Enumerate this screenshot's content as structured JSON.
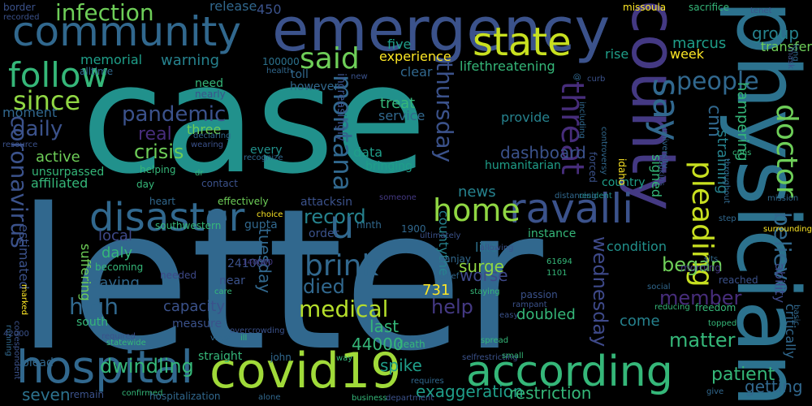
{
  "words": [
    {
      "text": "case",
      "color": "#21918c"
    },
    {
      "text": "letter",
      "color": "#31688e"
    },
    {
      "text": "emergency",
      "color": "#3b528b"
    },
    {
      "text": "physician",
      "color": "#2c728e"
    },
    {
      "text": "community",
      "color": "#31688e"
    },
    {
      "text": "covid19",
      "color": "#a0da39"
    },
    {
      "text": "according",
      "color": "#35b779"
    },
    {
      "text": "county",
      "color": "#443983"
    },
    {
      "text": "hospital",
      "color": "#31688e"
    },
    {
      "text": "ravalli",
      "color": "#3b528b"
    },
    {
      "text": "disaster",
      "color": "#31688e"
    },
    {
      "text": "state",
      "color": "#c8e020"
    },
    {
      "text": "follow",
      "color": "#35b779"
    },
    {
      "text": "infection",
      "color": "#6ece58"
    },
    {
      "text": "people",
      "color": "#31688e"
    },
    {
      "text": "said",
      "color": "#6ece58"
    },
    {
      "text": "doctor",
      "color": "#6ece58"
    },
    {
      "text": "montana",
      "color": "#31688e"
    },
    {
      "text": "say",
      "color": "#31688e"
    },
    {
      "text": "pleading",
      "color": "#c8e020"
    },
    {
      "text": "thursday",
      "color": "#3b528b"
    },
    {
      "text": "home",
      "color": "#90d743"
    },
    {
      "text": "brink",
      "color": "#31688e"
    },
    {
      "text": "since",
      "color": "#90d743"
    },
    {
      "text": "coronavirus",
      "color": "#3b528b"
    },
    {
      "text": "daily",
      "color": "#3b528b"
    },
    {
      "text": "crisis",
      "color": "#6ece58"
    },
    {
      "text": "pandemic",
      "color": "#3b528b"
    },
    {
      "text": "threat",
      "color": "#472d7b"
    },
    {
      "text": "record",
      "color": "#26828e"
    },
    {
      "text": "medical",
      "color": "#b5de2b"
    },
    {
      "text": "matter",
      "color": "#35b779"
    },
    {
      "text": "tuesday",
      "color": "#31688e"
    },
    {
      "text": "high",
      "color": "#31688e"
    },
    {
      "text": "dwindling",
      "color": "#35b779"
    },
    {
      "text": "exaggeration",
      "color": "#1f9e89"
    },
    {
      "text": "patient",
      "color": "#35b779"
    },
    {
      "text": "u",
      "color": "#31688e"
    },
    {
      "text": "wednesday",
      "color": "#3e4989"
    },
    {
      "text": "help",
      "color": "#443983"
    },
    {
      "text": "believe",
      "color": "#31688e"
    },
    {
      "text": "member",
      "color": "#472d7b"
    },
    {
      "text": "began",
      "color": "#6ece58"
    },
    {
      "text": "died",
      "color": "#31688e"
    },
    {
      "text": "capacity",
      "color": "#3b528b"
    },
    {
      "text": "restriction",
      "color": "#35b779"
    },
    {
      "text": "getting",
      "color": "#31688e"
    },
    {
      "text": "worse",
      "color": "#3e4989"
    },
    {
      "text": "surge",
      "color": "#90d743"
    },
    {
      "text": "cnn",
      "color": "#31688e"
    },
    {
      "text": "group",
      "color": "#26828e"
    },
    {
      "text": "warning",
      "color": "#26828e"
    },
    {
      "text": "experience",
      "color": "#fde725"
    },
    {
      "text": "release",
      "color": "#31688e"
    },
    {
      "text": "five",
      "color": "#1f9e89"
    },
    {
      "text": "rise",
      "color": "#1f9e89"
    },
    {
      "text": "marcus",
      "color": "#1f9e89"
    },
    {
      "text": "transfer",
      "color": "#6ece58"
    },
    {
      "text": "week",
      "color": "#fde725"
    },
    {
      "text": "active",
      "color": "#6ece58"
    },
    {
      "text": "affiliated",
      "color": "#35b779"
    },
    {
      "text": "three",
      "color": "#6ece58"
    },
    {
      "text": "real",
      "color": "#472d7b"
    },
    {
      "text": "data",
      "color": "#1f9e89"
    },
    {
      "text": "dashboard",
      "color": "#3b528b"
    },
    {
      "text": "treat",
      "color": "#35b779"
    },
    {
      "text": "news",
      "color": "#26828e"
    },
    {
      "text": "44000",
      "color": "#35b779"
    },
    {
      "text": "seven",
      "color": "#2c728e"
    },
    {
      "text": "spike",
      "color": "#1f9e89"
    },
    {
      "text": "last",
      "color": "#35b779"
    },
    {
      "text": "estimated",
      "color": "#3b528b"
    },
    {
      "text": "local",
      "color": "#3e4989"
    },
    {
      "text": "daly",
      "color": "#35b779"
    },
    {
      "text": "saying",
      "color": "#31688e"
    },
    {
      "text": "suffering",
      "color": "#6ece58"
    },
    {
      "text": "hampering",
      "color": "#35b779"
    },
    {
      "text": "straining",
      "color": "#26828e"
    },
    {
      "text": "signed",
      "color": "#35b779"
    },
    {
      "text": "ability",
      "color": "#3e4989"
    },
    {
      "text": "critically",
      "color": "#31688e"
    },
    {
      "text": "731",
      "color": "#fde725"
    },
    {
      "text": "450",
      "color": "#3b528b"
    },
    {
      "text": "countythe",
      "color": "#26828e"
    },
    {
      "text": "come",
      "color": "#26828e"
    },
    {
      "text": "doubled",
      "color": "#35b779"
    },
    {
      "text": "provide",
      "color": "#26828e"
    },
    {
      "text": "like",
      "color": "#2c728e"
    },
    {
      "text": "condition",
      "color": "#21918c"
    },
    {
      "text": "memorial",
      "color": "#1f9e89"
    },
    {
      "text": "lifethreatening",
      "color": "#35b779"
    },
    {
      "text": "clear",
      "color": "#31688e"
    },
    {
      "text": "service",
      "color": "#31688e"
    },
    {
      "text": "increasingly",
      "color": "#3b528b"
    },
    {
      "text": "border",
      "color": "#3b528b"
    },
    {
      "text": "recorded",
      "color": "#3b528b"
    },
    {
      "text": "100000",
      "color": "#2c728e"
    },
    {
      "text": "alltime",
      "color": "#31688e"
    },
    {
      "text": "need",
      "color": "#35b779"
    },
    {
      "text": "nearly",
      "color": "#3b528b"
    },
    {
      "text": "moment",
      "color": "#31688e"
    },
    {
      "text": "resource",
      "color": "#3b528b"
    },
    {
      "text": "unsurpassed",
      "color": "#35b779"
    },
    {
      "text": "every",
      "color": "#21918c"
    },
    {
      "text": "recognize",
      "color": "#31688e"
    },
    {
      "text": "bringing",
      "color": "#1f9e89"
    },
    {
      "text": "humanitarian",
      "color": "#1f9e89"
    },
    {
      "text": "country",
      "color": "#1f9e89"
    },
    {
      "text": "resident",
      "color": "#21918c"
    },
    {
      "text": "distancing",
      "color": "#31688e"
    },
    {
      "text": "heart",
      "color": "#31688e"
    },
    {
      "text": "effectively",
      "color": "#6ece58"
    },
    {
      "text": "attacksin",
      "color": "#3b528b"
    },
    {
      "text": "someone",
      "color": "#443983"
    },
    {
      "text": "missoula",
      "color": "#fde725"
    },
    {
      "text": "sacrifice",
      "color": "#35b779"
    },
    {
      "text": "tenet",
      "color": "#3b528b"
    },
    {
      "text": "toll",
      "color": "#31688e"
    },
    {
      "text": "however",
      "color": "#31688e"
    },
    {
      "text": "health",
      "color": "#31688e"
    },
    {
      "text": "new",
      "color": "#3b528b"
    },
    {
      "text": "curb",
      "color": "#3b528b"
    },
    {
      "text": "mask",
      "color": "#3b528b"
    },
    {
      "text": "long",
      "color": "#31688e"
    },
    {
      "text": "including",
      "color": "#31688e"
    },
    {
      "text": "forced",
      "color": "#3b528b"
    },
    {
      "text": "idaho",
      "color": "#fde725"
    },
    {
      "text": "university",
      "color": "#31688e"
    },
    {
      "text": "hopkins",
      "color": "#3b528b"
    },
    {
      "text": "throughout",
      "color": "#31688e"
    },
    {
      "text": "cnns",
      "color": "#35b779"
    },
    {
      "text": "controversy",
      "color": "#31688e"
    },
    {
      "text": "choice",
      "color": "#fde725"
    },
    {
      "text": "southwestern",
      "color": "#35b779"
    },
    {
      "text": "gupta",
      "color": "#31688e"
    },
    {
      "text": "order",
      "color": "#3b528b"
    },
    {
      "text": "ninth",
      "color": "#31688e"
    },
    {
      "text": "1900",
      "color": "#31688e"
    },
    {
      "text": "ultimately",
      "color": "#3b528b"
    },
    {
      "text": "instance",
      "color": "#35b779"
    },
    {
      "text": "allowing",
      "color": "#3b528b"
    },
    {
      "text": "61694",
      "color": "#35b779"
    },
    {
      "text": "1101",
      "color": "#35b779"
    },
    {
      "text": "staying",
      "color": "#35b779"
    },
    {
      "text": "sanjay",
      "color": "#31688e"
    },
    {
      "text": "chief",
      "color": "#31688e"
    },
    {
      "text": "passion",
      "color": "#3b528b"
    },
    {
      "text": "rampant",
      "color": "#3b528b"
    },
    {
      "text": "spread",
      "color": "#35b779"
    },
    {
      "text": "easy",
      "color": "#3b528b"
    },
    {
      "text": "death",
      "color": "#35b779"
    },
    {
      "text": "way",
      "color": "#35b779"
    },
    {
      "text": "john",
      "color": "#31688e"
    },
    {
      "text": "straight",
      "color": "#35b779"
    },
    {
      "text": "virus",
      "color": "#31688e"
    },
    {
      "text": "overcrowding",
      "color": "#3b528b"
    },
    {
      "text": "care",
      "color": "#35b779"
    },
    {
      "text": "near",
      "color": "#3b528b"
    },
    {
      "text": "241000",
      "color": "#3b528b"
    },
    {
      "text": "140000",
      "color": "#443983"
    },
    {
      "text": "needed",
      "color": "#3e4989"
    },
    {
      "text": "becoming",
      "color": "#35b779"
    },
    {
      "text": "south",
      "color": "#35b779"
    },
    {
      "text": "measure",
      "color": "#3b528b"
    },
    {
      "text": "required",
      "color": "#3b528b"
    },
    {
      "text": "statewide",
      "color": "#35b779"
    },
    {
      "text": "plead",
      "color": "#31688e"
    },
    {
      "text": "running",
      "color": "#31688e"
    },
    {
      "text": "correspondent",
      "color": "#3b528b"
    },
    {
      "text": "marked",
      "color": "#fde725"
    },
    {
      "text": "remain",
      "color": "#3b528b"
    },
    {
      "text": "confirmed",
      "color": "#35b779"
    },
    {
      "text": "hospitalization",
      "color": "#31688e"
    },
    {
      "text": "alone",
      "color": "#31688e"
    },
    {
      "text": "business",
      "color": "#35b779"
    },
    {
      "text": "department",
      "color": "#3b528b"
    },
    {
      "text": "requires",
      "color": "#31688e"
    },
    {
      "text": "selfrestricting",
      "color": "#3b528b"
    },
    {
      "text": "small",
      "color": "#35b779"
    },
    {
      "text": "give",
      "color": "#31688e"
    },
    {
      "text": "topped",
      "color": "#35b779"
    },
    {
      "text": "freedom",
      "color": "#35b779"
    },
    {
      "text": "reducing",
      "color": "#35b779"
    },
    {
      "text": "social",
      "color": "#31688e"
    },
    {
      "text": "reached",
      "color": "#3b528b"
    },
    {
      "text": "sits",
      "color": "#31688e"
    },
    {
      "text": "morning",
      "color": "#443983"
    },
    {
      "text": "step",
      "color": "#31688e"
    },
    {
      "text": "mission",
      "color": "#31688e"
    },
    {
      "text": "surrounding",
      "color": "#fde725"
    },
    {
      "text": "basic",
      "color": "#31688e"
    },
    {
      "text": "day",
      "color": "#35b779"
    },
    {
      "text": "contact",
      "color": "#3b528b"
    },
    {
      "text": "helping",
      "color": "#35b779"
    },
    {
      "text": "dr",
      "color": "#35b779"
    },
    {
      "text": "declaring",
      "color": "#31688e"
    },
    {
      "text": "wearing",
      "color": "#3b528b"
    },
    {
      "text": "ill",
      "color": "#35b779"
    },
    {
      "text": "42000",
      "color": "#3b528b"
    },
    {
      "text": "@",
      "color": "#31688e"
    }
  ]
}
